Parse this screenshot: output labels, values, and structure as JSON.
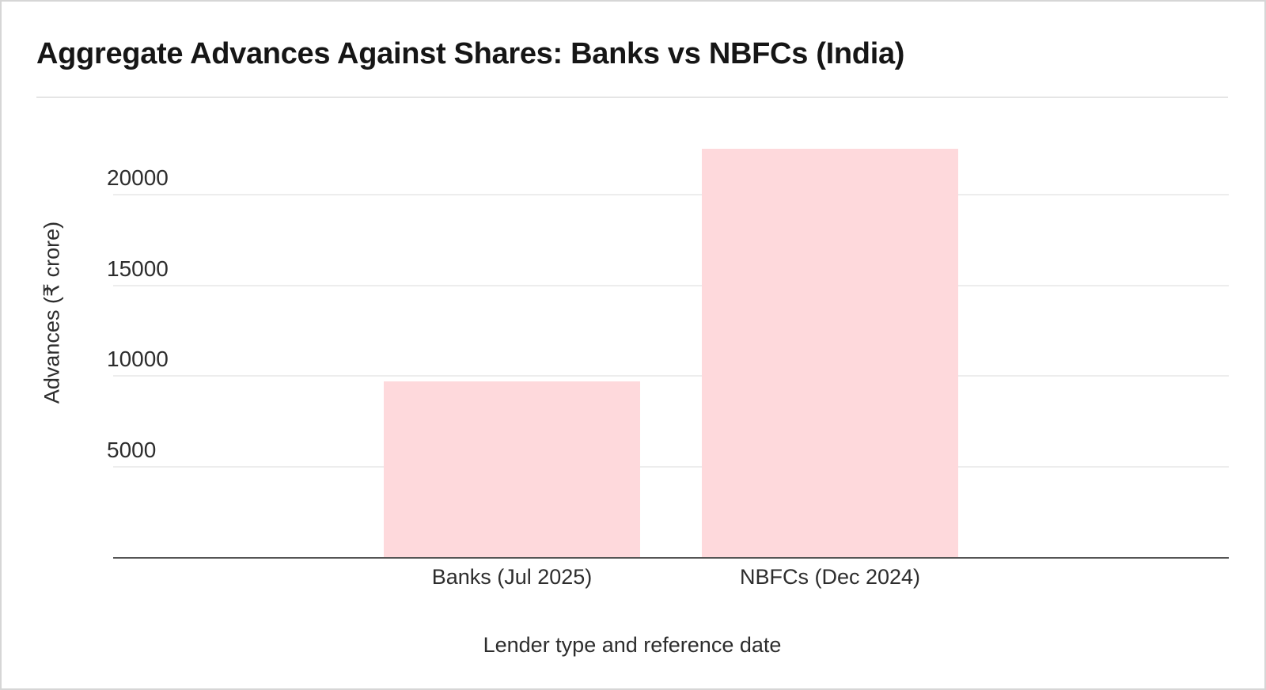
{
  "page": {
    "title": "Aggregate Advances Against Shares: Banks vs NBFCs (India)"
  },
  "chart_data": {
    "type": "bar",
    "title": "Aggregate Advances Against Shares: Banks vs NBFCs (India)",
    "categories": [
      "Banks (Jul 2025)",
      "NBFCs (Dec 2024)"
    ],
    "values": [
      9700,
      22550
    ],
    "xlabel": "Lender type and reference date",
    "ylabel": "Advances (₹ crore)",
    "yticks": [
      5000,
      10000,
      15000,
      20000
    ],
    "ylim": [
      0,
      23500
    ],
    "grid": true,
    "legend": "none",
    "bar_color": "#fed9dc"
  },
  "colors": {
    "bar_fill": "#fed9dc",
    "axis_line": "#555555",
    "gridline": "#ededed",
    "title_text": "#161616",
    "label_text": "#2d2d2d",
    "divider": "#e5e5e5",
    "frame_border": "#d6d6d6",
    "background": "#ffffff"
  }
}
